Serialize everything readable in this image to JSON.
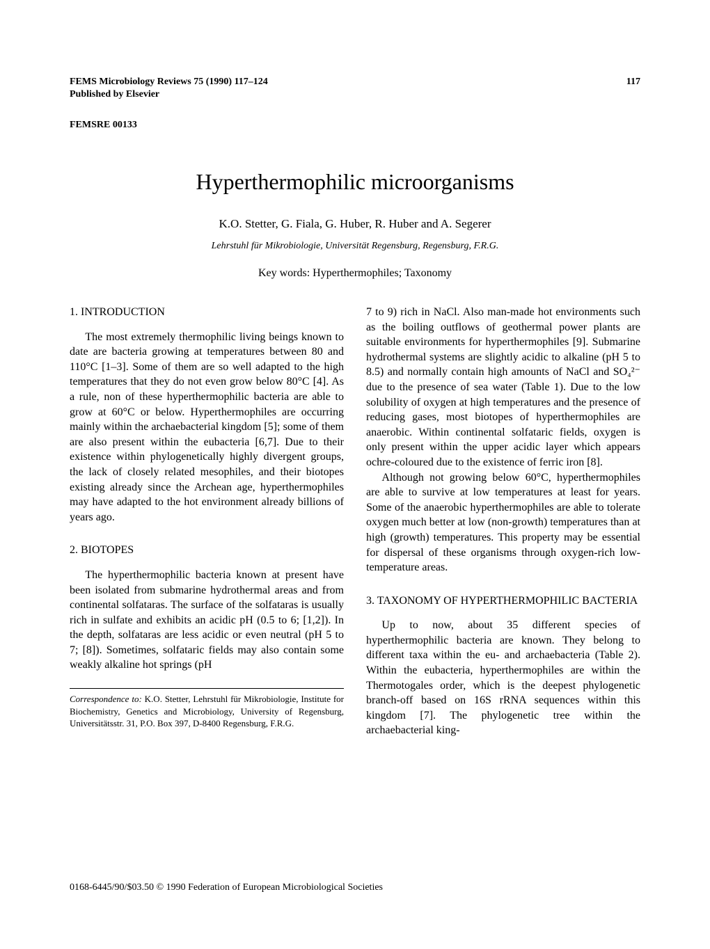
{
  "header": {
    "journal_line": "FEMS Microbiology Reviews 75 (1990) 117–124",
    "page_number": "117",
    "publisher": "Published by Elsevier",
    "article_id": "FEMSRE 00133"
  },
  "title": "Hyperthermophilic microorganisms",
  "authors": "K.O. Stetter, G. Fiala, G. Huber, R. Huber and A. Segerer",
  "affiliation": "Lehrstuhl für Mikrobiologie, Universität Regensburg, Regensburg, F.R.G.",
  "keywords": "Key words: Hyperthermophiles; Taxonomy",
  "sections": {
    "intro_heading": "1. INTRODUCTION",
    "intro_p1": "The most extremely thermophilic living beings known to date are bacteria growing at temperatures between 80 and 110°C [1–3]. Some of them are so well adapted to the high temperatures that they do not even grow below 80°C [4]. As a rule, non of these hyperthermophilic bacteria are able to grow at 60°C or below. Hyperthermophiles are occurring mainly within the archaebacterial kingdom [5]; some of them are also present within the eubacteria [6,7]. Due to their existence within phylogenetically highly divergent groups, the lack of closely related mesophiles, and their biotopes existing already since the Archean age, hyperthermophiles may have adapted to the hot environment already billions of years ago.",
    "biotopes_heading": "2. BIOTOPES",
    "biotopes_p1": "The hyperthermophilic bacteria known at present have been isolated from submarine hydrothermal areas and from continental solfataras. The surface of the solfataras is usually rich in sulfate and exhibits an acidic pH (0.5 to 6; [1,2]). In the depth, solfataras are less acidic or even neutral (pH 5 to 7; [8]). Sometimes, solfataric fields may also contain some weakly alkaline hot springs (pH",
    "col2_p1": "7 to 9) rich in NaCl. Also man-made hot environments such as the boiling outflows of geothermal power plants are suitable environments for hyperthermophiles [9]. Submarine hydrothermal systems are slightly acidic to alkaline (pH 5 to 8.5) and normally contain high amounts of NaCl and SO₄²⁻ due to the presence of sea water (Table 1). Due to the low solubility of oxygen at high temperatures and the presence of reducing gases, most biotopes of hyperthermophiles are anaerobic. Within continental solfataric fields, oxygen is only present within the upper acidic layer which appears ochre-coloured due to the existence of ferric iron [8].",
    "col2_p2": "Although not growing below 60°C, hyperthermophiles are able to survive at low temperatures at least for years. Some of the anaerobic hyperthermophiles are able to tolerate oxygen much better at low (non-growth) temperatures than at high (growth) temperatures. This property may be essential for dispersal of these organisms through oxygen-rich low-temperature areas.",
    "taxonomy_heading": "3. TAXONOMY OF HYPERTHERMOPHILIC BACTERIA",
    "taxonomy_p1": "Up to now, about 35 different species of hyperthermophilic bacteria are known. They belong to different taxa within the eu- and archaebacteria (Table 2). Within the eubacteria, hyperthermophiles are within the Thermotogales order, which is the deepest phylogenetic branch-off based on 16S rRNA sequences within this kingdom [7]. The phylogenetic tree within the archaebacterial king-"
  },
  "correspondence": {
    "label": "Correspondence to:",
    "text": " K.O. Stetter, Lehrstuhl für Mikrobiologie, Institute for Biochemistry, Genetics and Microbiology, University of Regensburg, Universitätsstr. 31, P.O. Box 397, D-8400 Regensburg, F.R.G."
  },
  "copyright": "0168-6445/90/$03.50 © 1990 Federation of European Microbiological Societies"
}
